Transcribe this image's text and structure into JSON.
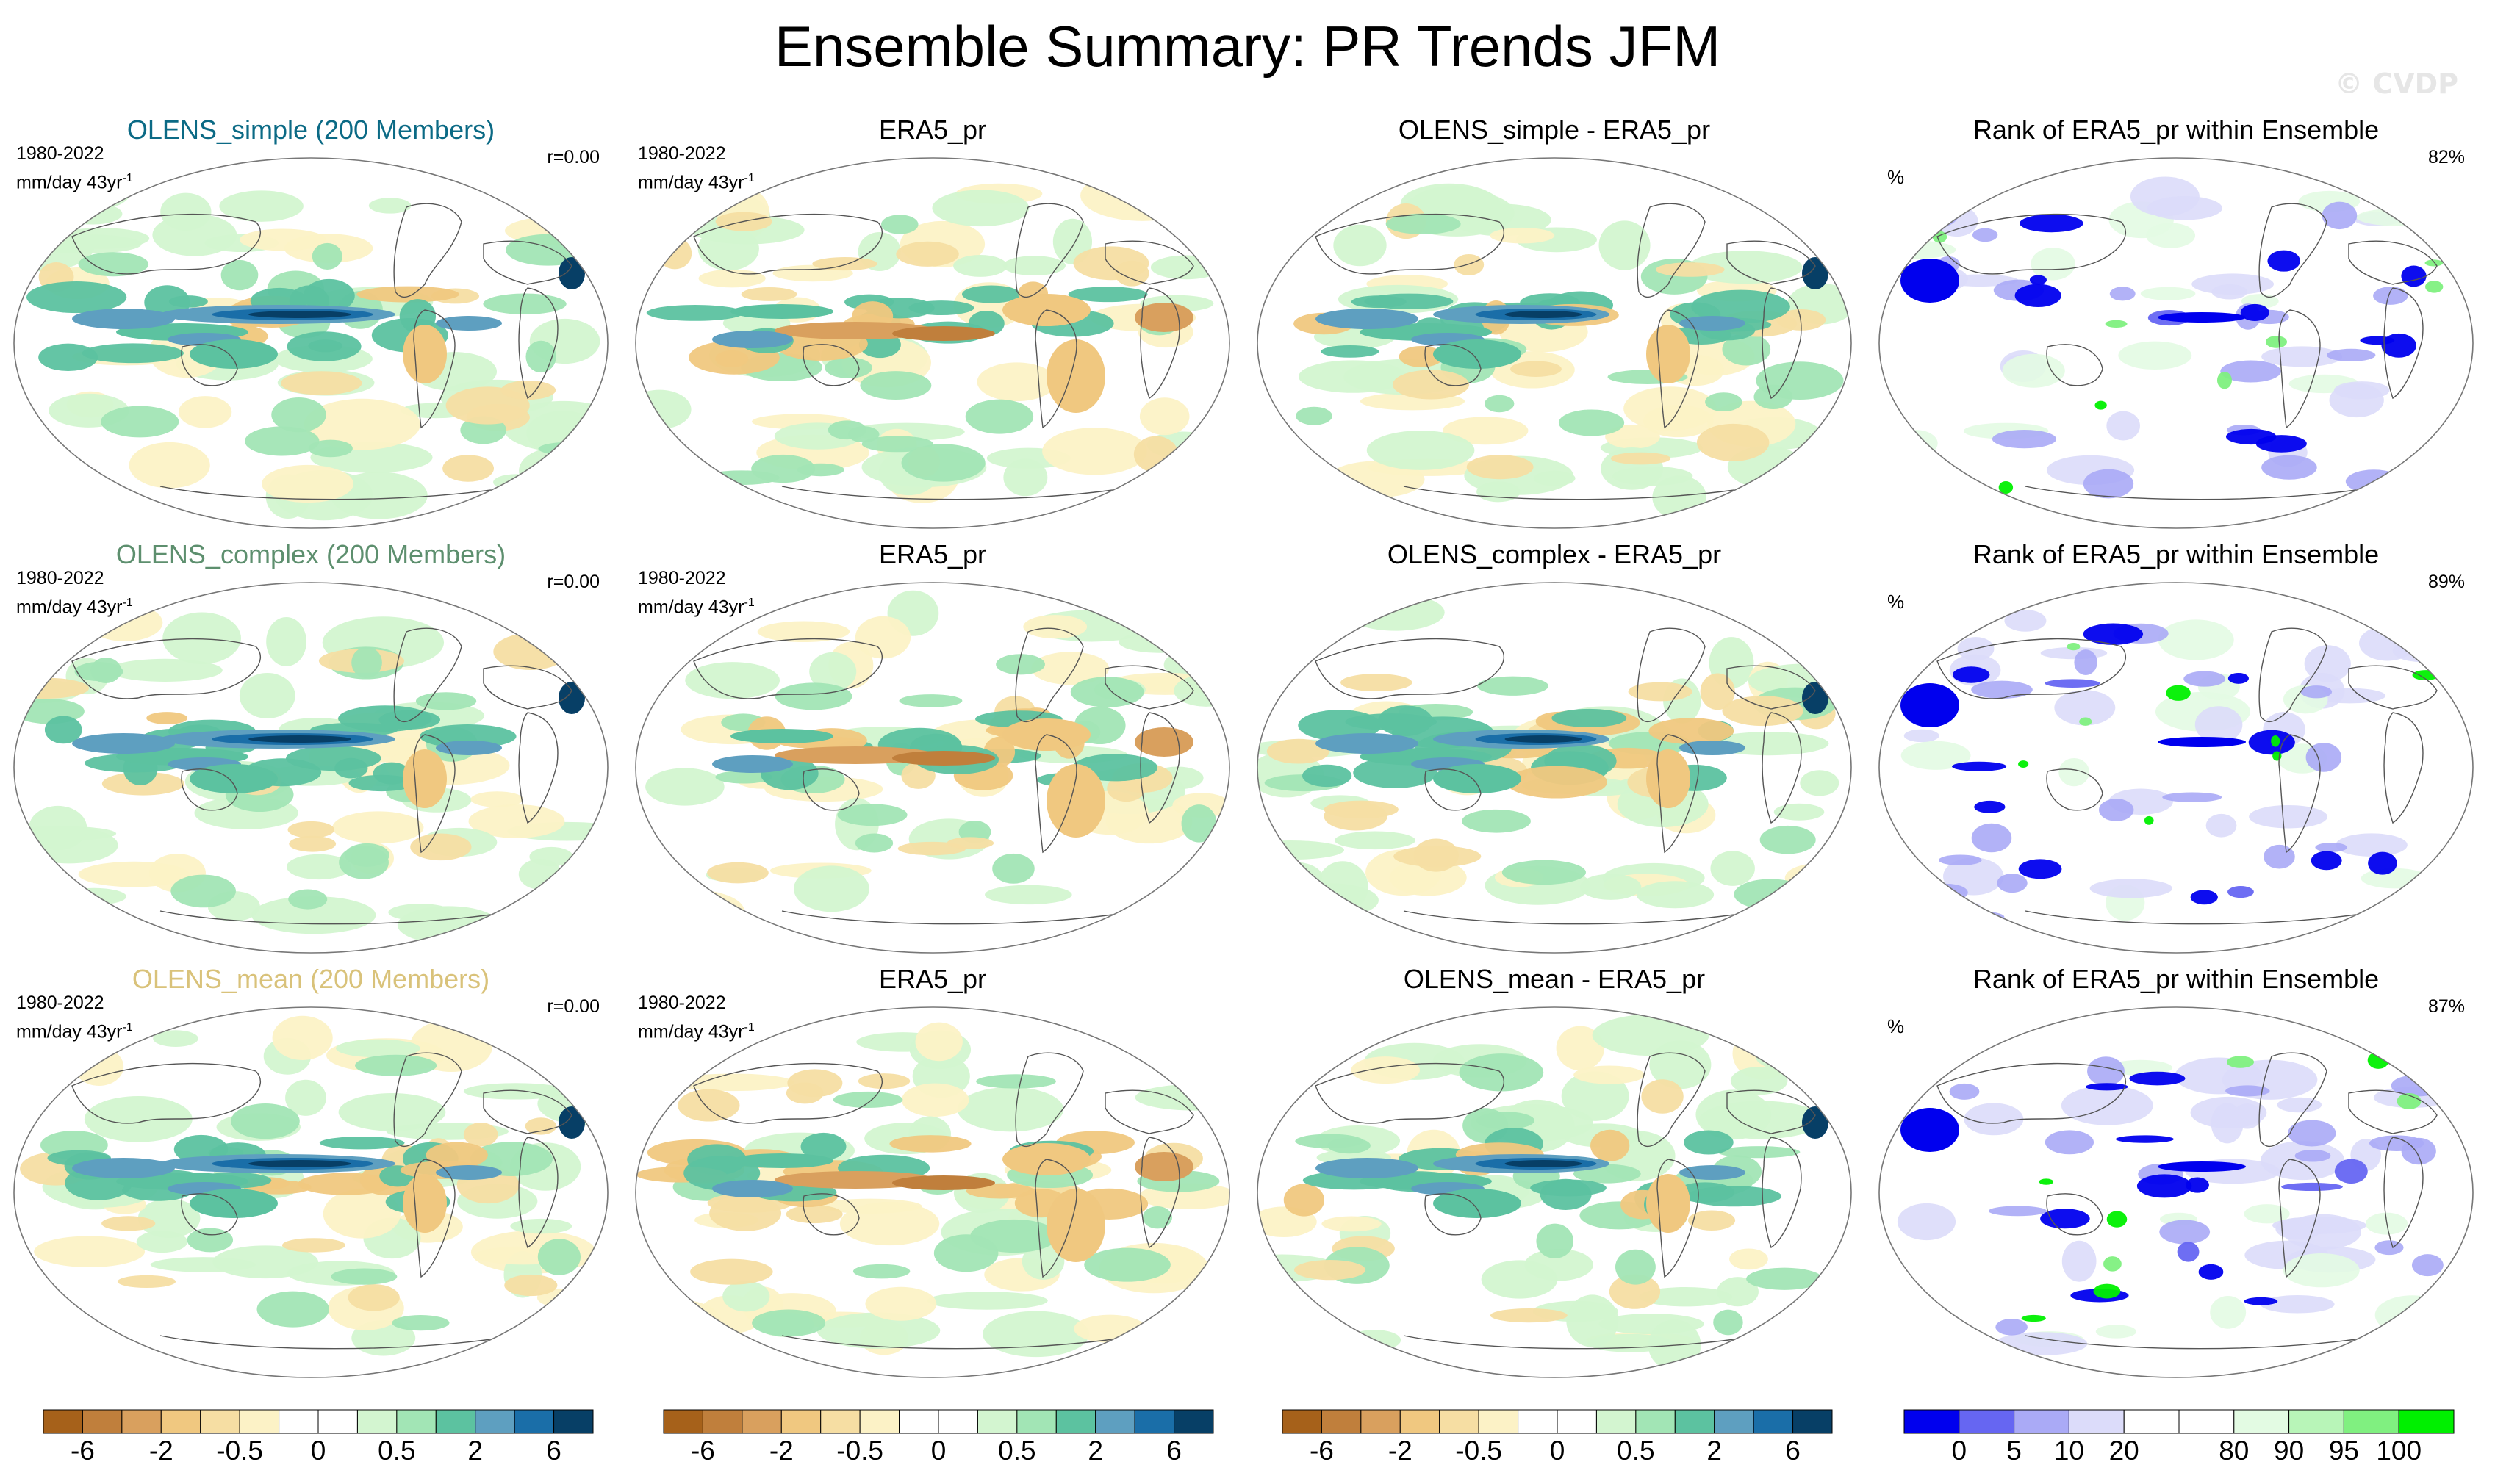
{
  "title": "Ensemble Summary: PR Trends JFM",
  "watermark": "© CVDP",
  "rows": [
    {
      "model": {
        "title": "OLENS_simple (200 Members)",
        "title_color": "#0b6a85",
        "period": "1980-2022",
        "units": "mm/day 43yr",
        "r": "r=0.00"
      },
      "obs": {
        "title": "ERA5_pr",
        "period": "1980-2022",
        "units": "mm/day 43yr"
      },
      "diff": {
        "title": "OLENS_simple - ERA5_pr"
      },
      "rank": {
        "title": "Rank of ERA5_pr within Ensemble",
        "pct": "82%",
        "unit": "%"
      }
    },
    {
      "model": {
        "title": "OLENS_complex (200 Members)",
        "title_color": "#5d8f6e",
        "period": "1980-2022",
        "units": "mm/day 43yr",
        "r": "r=0.00"
      },
      "obs": {
        "title": "ERA5_pr",
        "period": "1980-2022",
        "units": "mm/day 43yr"
      },
      "diff": {
        "title": "OLENS_complex - ERA5_pr"
      },
      "rank": {
        "title": "Rank of ERA5_pr within Ensemble",
        "pct": "89%",
        "unit": "%"
      }
    },
    {
      "model": {
        "title": "OLENS_mean (200 Members)",
        "title_color": "#d9c27a",
        "period": "1980-2022",
        "units": "mm/day 43yr",
        "r": "r=0.00"
      },
      "obs": {
        "title": "ERA5_pr",
        "period": "1980-2022",
        "units": "mm/day 43yr"
      },
      "diff": {
        "title": "OLENS_mean - ERA5_pr"
      },
      "rank": {
        "title": "Rank of ERA5_pr within Ensemble",
        "pct": "87%",
        "unit": "%"
      }
    }
  ],
  "unit_exponent": "-1",
  "colorbars": {
    "trend": {
      "colors": [
        "#a6611a",
        "#c07f3c",
        "#d9a05e",
        "#f0c880",
        "#f6dea3",
        "#fcf2c6",
        "#ffffff",
        "#ffffff",
        "#d3f5d0",
        "#a2e5b5",
        "#5cc2a0",
        "#5e9fc0",
        "#1a6ea8",
        "#073f66"
      ],
      "labels": [
        "-6",
        "-2",
        "-0.5",
        "0",
        "0.5",
        "2",
        "6"
      ],
      "label_boundaries": [
        1,
        3,
        5,
        7,
        9,
        11,
        13
      ]
    },
    "rank": {
      "colors": [
        "#0000ee",
        "#6666f2",
        "#aaaaf6",
        "#dcdcfa",
        "#ffffff",
        "#ffffff",
        "#e3fbe3",
        "#b8f5b8",
        "#80f080",
        "#00f000"
      ],
      "labels": [
        "0",
        "5",
        "10",
        "20",
        "80",
        "90",
        "95",
        "100"
      ],
      "label_boundaries": [
        1,
        2,
        3,
        4,
        6,
        7,
        8,
        9
      ]
    }
  },
  "chart_data": {
    "type": "heatmap",
    "title": "Ensemble Summary: PR Trends JFM",
    "variable": "PR trend",
    "season": "JFM",
    "period": "1980-2022",
    "units": "mm/day 43yr-1",
    "trend_levels": [
      -6,
      -2,
      -0.5,
      0,
      0.5,
      2,
      6
    ],
    "rank_levels": [
      0,
      5,
      10,
      20,
      80,
      90,
      95,
      100
    ],
    "pattern_correlations": [
      0.0,
      0.0,
      0.0
    ],
    "rank_summary_percent": [
      82,
      89,
      87
    ]
  }
}
